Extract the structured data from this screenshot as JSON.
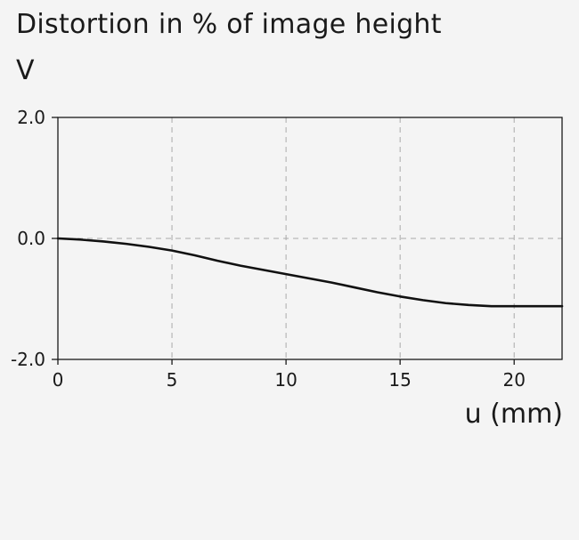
{
  "chart_data": {
    "type": "line",
    "title": "Distortion in % of image height",
    "ylabel": "V",
    "xlabel": "u (mm)",
    "xlim": [
      0,
      22.1
    ],
    "ylim": [
      -2.0,
      2.0
    ],
    "x_ticks": [
      0,
      5,
      10,
      15,
      20
    ],
    "x_tick_labels": [
      "0",
      "5",
      "10",
      "15",
      "20"
    ],
    "y_ticks": [
      2.0,
      0.0,
      -2.0
    ],
    "y_tick_labels": [
      "2.0",
      "0.0",
      "-2.0"
    ],
    "grid": true,
    "series": [
      {
        "color": "#111111",
        "x": [
          0,
          1,
          2,
          3,
          4,
          5,
          6,
          7,
          8,
          9,
          10,
          11,
          12,
          13,
          14,
          15,
          16,
          17,
          18,
          19,
          20,
          21,
          22.1
        ],
        "y": [
          0.0,
          -0.02,
          -0.05,
          -0.09,
          -0.14,
          -0.2,
          -0.28,
          -0.37,
          -0.45,
          -0.52,
          -0.59,
          -0.66,
          -0.73,
          -0.81,
          -0.89,
          -0.96,
          -1.02,
          -1.07,
          -1.1,
          -1.12,
          -1.12,
          -1.12,
          -1.12
        ]
      }
    ]
  }
}
